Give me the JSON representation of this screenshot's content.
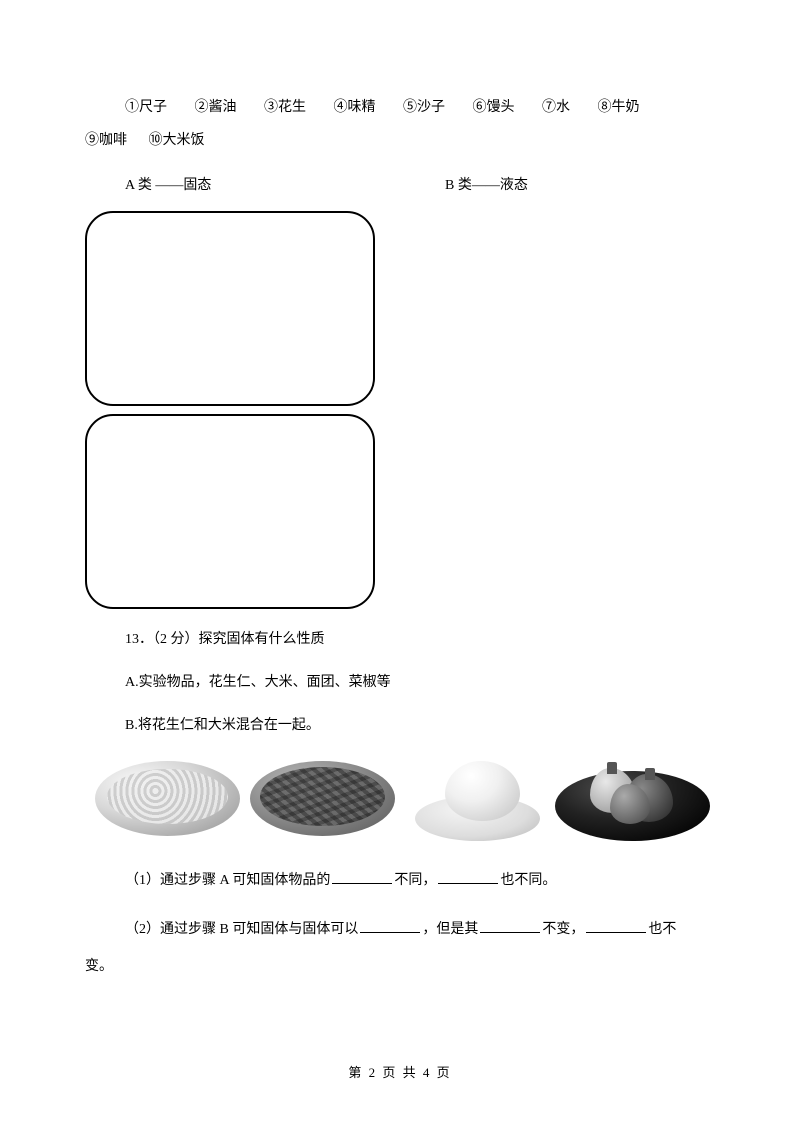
{
  "items": {
    "i1": "①尺子",
    "i2": "②酱油",
    "i3": "③花生",
    "i4": "④味精",
    "i5": "⑤沙子",
    "i6": "⑥馒头",
    "i7": "⑦水",
    "i8": "⑧牛奶",
    "i9": "⑨咖啡",
    "i10": "⑩大米饭"
  },
  "categories": {
    "a": "A 类 ——固态",
    "b": "B 类——液态"
  },
  "q13": {
    "stem": "13．（2 分）探究固体有什么性质",
    "stepA": "A.实验物品，花生仁、大米、面团、菜椒等",
    "stepB": "B.将花生仁和大米混合在一起。"
  },
  "fill": {
    "q1_prefix": "（1）通过步骤 A 可知固体物品的",
    "q1_mid": "不同，",
    "q1_suffix": "也不同。",
    "q2_prefix": "（2）通过步骤 B 可知固体与固体可以",
    "q2_mid1": "，但是其",
    "q2_mid2": "不变，",
    "q2_suffix": "也不",
    "q2_end": "变。"
  },
  "footer": {
    "text": "第 2 页 共 4 页"
  },
  "images": {
    "rice": "rice-plate",
    "peanut": "peanut-plate",
    "dough": "dough-ball",
    "pepper": "pepper-plate"
  }
}
